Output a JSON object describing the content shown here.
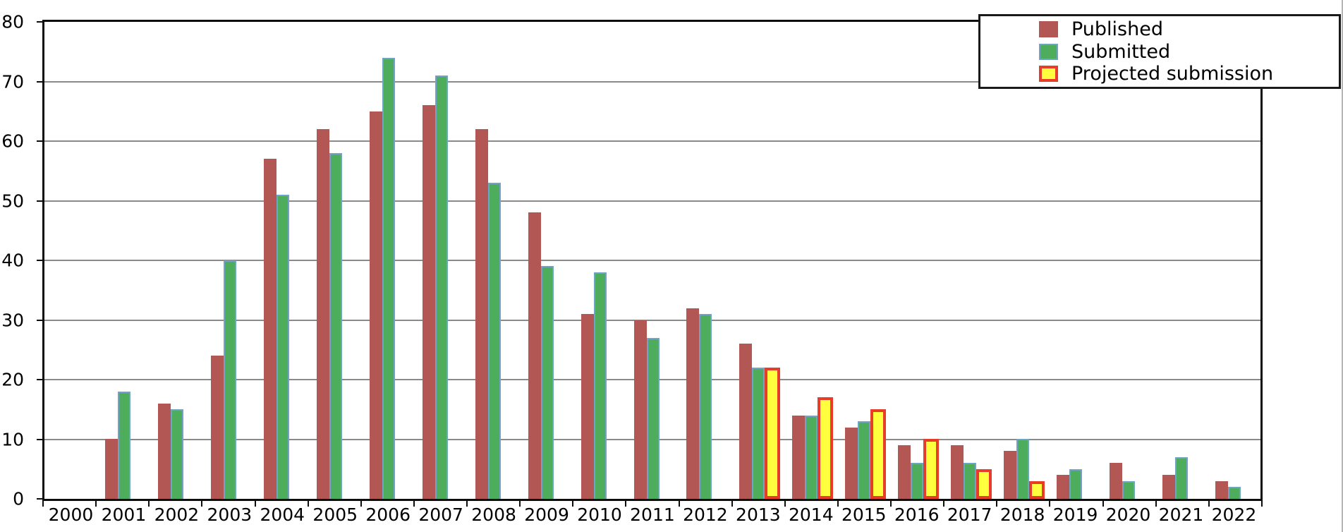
{
  "chart_data": {
    "type": "bar",
    "title": "",
    "xlabel": "",
    "ylabel": "",
    "categories": [
      "2000",
      "2001",
      "2002",
      "2003",
      "2004",
      "2005",
      "2006",
      "2007",
      "2008",
      "2009",
      "2010",
      "2011",
      "2012",
      "2013",
      "2014",
      "2015",
      "2016",
      "2017",
      "2018",
      "2019",
      "2020",
      "2021",
      "2022"
    ],
    "series": [
      {
        "name": "Published",
        "color": "#b25753",
        "border_color": null,
        "values": [
          0,
          10,
          16,
          24,
          57,
          62,
          65,
          66,
          62,
          48,
          31,
          30,
          32,
          26,
          14,
          12,
          9,
          9,
          8,
          4,
          6,
          4,
          3
        ]
      },
      {
        "name": "Submitted",
        "color": "#4ead5c",
        "border_color": "#71a3c7",
        "values": [
          0,
          18,
          15,
          40,
          51,
          58,
          74,
          71,
          53,
          39,
          38,
          27,
          31,
          22,
          14,
          13,
          6,
          6,
          10,
          5,
          3,
          7,
          2
        ]
      },
      {
        "name": "Projected submission",
        "color": "#ffff3d",
        "border_color": "#e73c28",
        "values": [
          null,
          null,
          null,
          null,
          null,
          null,
          null,
          null,
          null,
          null,
          null,
          null,
          null,
          22,
          17,
          15,
          10,
          5,
          3,
          null,
          null,
          null,
          null
        ]
      }
    ],
    "ylim": [
      0,
      80
    ],
    "ytick_step": 10,
    "ytick_labels": [
      "0",
      "10",
      "20",
      "30",
      "40",
      "50",
      "60",
      "70",
      "80"
    ],
    "grid": true,
    "gridline_color": "#8a8a8a",
    "axis_color": "#0d0d0d",
    "legend_position": "top-right"
  }
}
